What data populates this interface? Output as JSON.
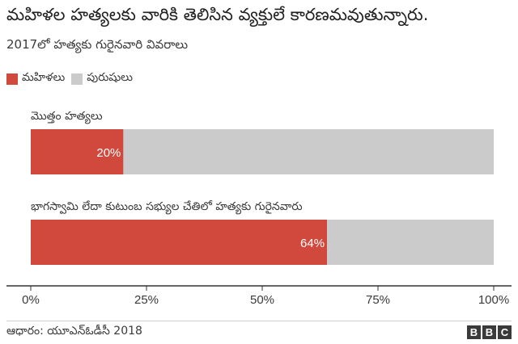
{
  "title": "మహిళల హత్యలకు వారికి తెలిసిన వ్యక్తులే కారణమవుతున్నారు.",
  "subtitle": "2017లో హత్యకు గురైనవారి వివరాలు",
  "source": "ఆధారం: యూఎన్ఓడీసీ 2018",
  "logo_letters": [
    "B",
    "B",
    "C"
  ],
  "colors": {
    "women": "#d1493d",
    "men": "#cbcbcb",
    "axis": "#333333",
    "text": "#3a3a3a"
  },
  "chart_data": {
    "type": "bar",
    "orientation": "horizontal",
    "stacked": true,
    "categories": [
      "మొత్తం హత్యలు",
      "భాగస్వామి లేదా కుటుంబ సభ్యుల చేతిలో హత్యకు గురైనవారు"
    ],
    "series": [
      {
        "name": "మహిళలు",
        "values": [
          20,
          64
        ],
        "color": "#d1493d",
        "labels": [
          "20%",
          "64%"
        ]
      },
      {
        "name": "పురుషులు",
        "values": [
          80,
          36
        ],
        "color": "#cbcbcb"
      }
    ],
    "xlim": [
      0,
      100
    ],
    "xticks": [
      0,
      25,
      50,
      75,
      100
    ],
    "xtick_labels": [
      "0%",
      "25%",
      "50%",
      "75%",
      "100%"
    ],
    "legend_position": "top-left",
    "grid": false
  }
}
